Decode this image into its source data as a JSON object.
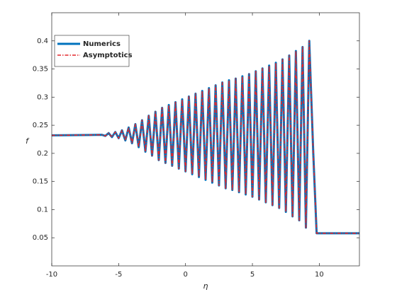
{
  "chart_data": {
    "type": "line",
    "xlabel": "η",
    "ylabel": "f",
    "x": [
      -10,
      -6.25,
      -6,
      -5.75,
      -5.5,
      -5.25,
      -5,
      -4.75,
      -4.5,
      -4.25,
      -4,
      -3.75,
      -3.5,
      -3.25,
      -3,
      -2.75,
      -2.5,
      -2.25,
      -2,
      -1.75,
      -1.5,
      -1.25,
      -1,
      -0.75,
      -0.5,
      -0.25,
      0,
      0.25,
      0.5,
      0.75,
      1,
      1.25,
      1.5,
      1.75,
      2,
      2.25,
      2.5,
      2.75,
      3,
      3.25,
      3.5,
      3.75,
      4,
      4.25,
      4.5,
      4.75,
      5,
      5.25,
      5.5,
      5.75,
      6,
      6.25,
      6.5,
      6.75,
      7,
      7.25,
      7.5,
      7.75,
      8,
      8.25,
      8.5,
      8.75,
      9,
      9.25,
      9.55,
      9.8,
      13
    ],
    "series": [
      {
        "name": "Numerics",
        "color": "#0072bd",
        "dash": false,
        "values": [
          0.232,
          0.233,
          0.231,
          0.236,
          0.229,
          0.238,
          0.227,
          0.241,
          0.223,
          0.246,
          0.218,
          0.252,
          0.211,
          0.259,
          0.203,
          0.267,
          0.196,
          0.274,
          0.188,
          0.281,
          0.183,
          0.286,
          0.178,
          0.291,
          0.173,
          0.296,
          0.168,
          0.301,
          0.163,
          0.306,
          0.158,
          0.311,
          0.153,
          0.316,
          0.148,
          0.321,
          0.143,
          0.326,
          0.138,
          0.33,
          0.135,
          0.333,
          0.131,
          0.337,
          0.127,
          0.341,
          0.123,
          0.346,
          0.118,
          0.351,
          0.113,
          0.356,
          0.108,
          0.361,
          0.103,
          0.367,
          0.096,
          0.374,
          0.088,
          0.382,
          0.081,
          0.389,
          0.068,
          0.4,
          0.2,
          0.058,
          0.058
        ]
      },
      {
        "name": "Asymptotics",
        "color": "#e3272b",
        "dash": true,
        "values": [
          0.232,
          0.233,
          0.231,
          0.236,
          0.229,
          0.238,
          0.227,
          0.241,
          0.223,
          0.246,
          0.218,
          0.252,
          0.211,
          0.259,
          0.203,
          0.267,
          0.196,
          0.274,
          0.188,
          0.281,
          0.183,
          0.286,
          0.178,
          0.291,
          0.173,
          0.296,
          0.168,
          0.301,
          0.163,
          0.306,
          0.158,
          0.311,
          0.153,
          0.316,
          0.148,
          0.321,
          0.143,
          0.326,
          0.138,
          0.33,
          0.135,
          0.333,
          0.131,
          0.337,
          0.127,
          0.341,
          0.123,
          0.346,
          0.118,
          0.351,
          0.113,
          0.356,
          0.108,
          0.361,
          0.103,
          0.367,
          0.096,
          0.374,
          0.088,
          0.382,
          0.081,
          0.389,
          0.068,
          0.4,
          0.2,
          0.058,
          0.058
        ]
      }
    ],
    "xlim": [
      -10,
      13
    ],
    "xticks": [
      -10,
      -5,
      0,
      5,
      10
    ],
    "ylim": [
      0,
      0.45
    ],
    "yticks": [
      0.05,
      0.1,
      0.15,
      0.2,
      0.25,
      0.3,
      0.35,
      0.4
    ],
    "legend": "upper left"
  }
}
